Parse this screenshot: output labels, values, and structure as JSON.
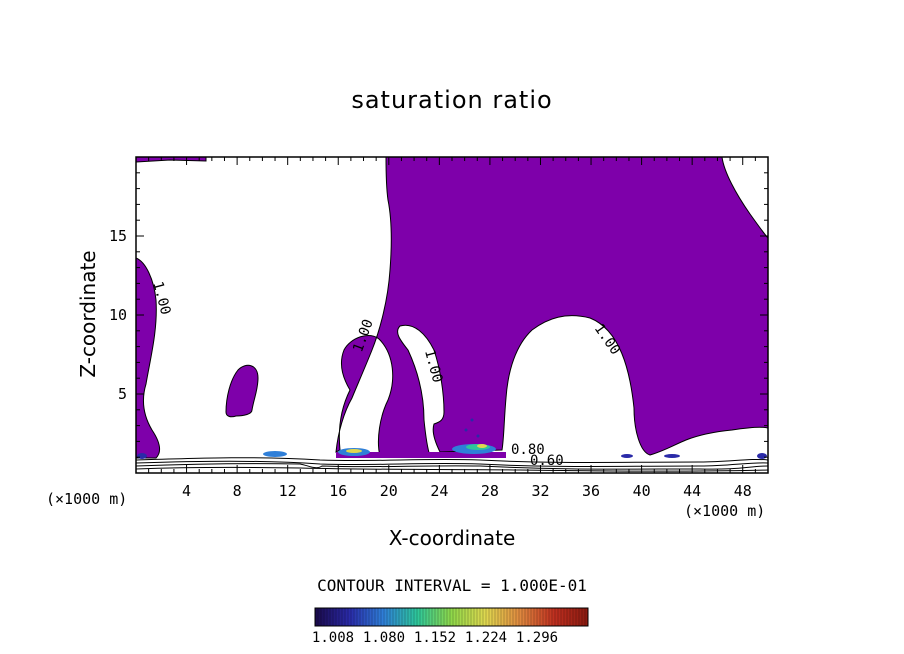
{
  "chart_data": {
    "type": "contour",
    "title": "saturation ratio",
    "xlabel": "X-coordinate",
    "ylabel": "Z-coordinate",
    "x_unit": "(×1000 m)",
    "y_unit": "(×1000 m)",
    "xlim": [
      0,
      50
    ],
    "ylim": [
      0,
      20
    ],
    "xticks": [
      4,
      8,
      12,
      16,
      20,
      24,
      28,
      32,
      36,
      40,
      44,
      48
    ],
    "yticks": [
      5,
      10,
      15
    ],
    "contour_labels": [
      "1.00",
      "1.00",
      "1.00",
      "1.00",
      "0.80",
      "0.60"
    ],
    "contour_interval_text": "CONTOUR INTERVAL = 1.000E-01",
    "colorbar": {
      "ticks": [
        "1.008",
        "1.080",
        "1.152",
        "1.224",
        "1.296"
      ],
      "colors": [
        "#1a0a4a",
        "#2a2aa8",
        "#2f7fd8",
        "#2ec79a",
        "#8fd84a",
        "#e0d850",
        "#e08a40",
        "#c03020",
        "#8a1a10"
      ]
    },
    "colors": {
      "fill": "#7e00aa",
      "contour": "#000000"
    }
  }
}
